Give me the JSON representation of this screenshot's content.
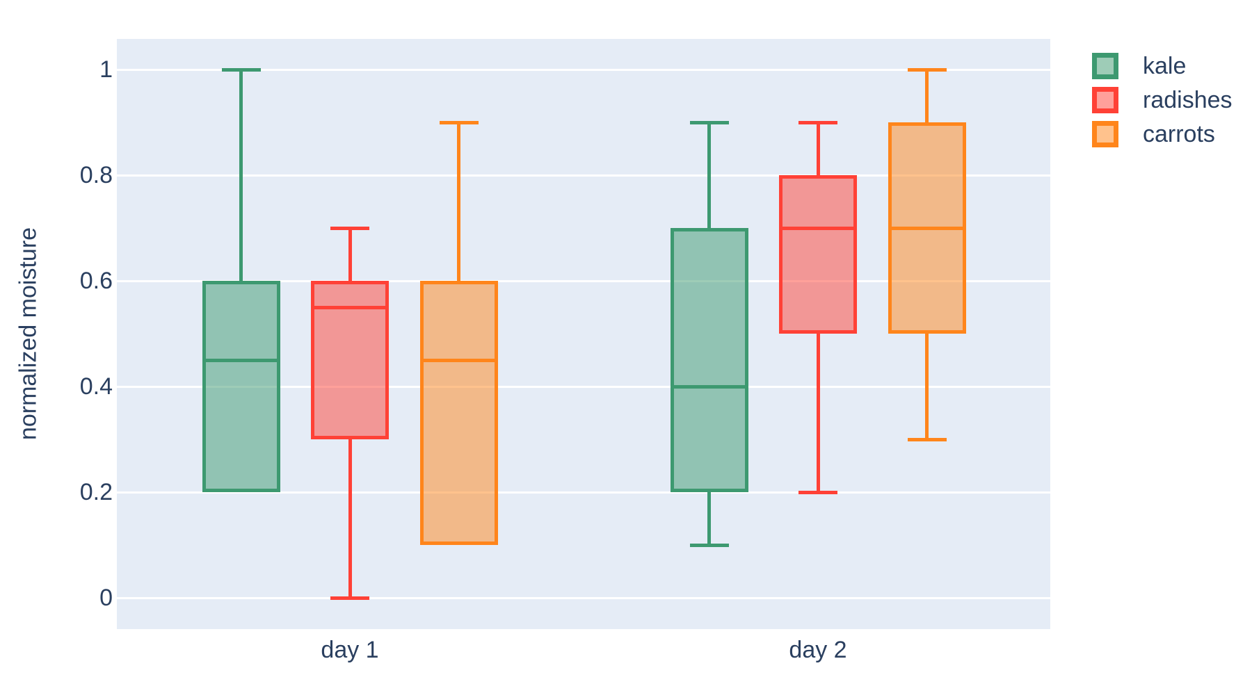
{
  "chart_data": {
    "type": "box",
    "boxmode": "group",
    "title": "",
    "xlabel": "",
    "ylabel": "normalized moisture",
    "categories": [
      "day 1",
      "day 2"
    ],
    "y_tick_labels": [
      "0",
      "0.2",
      "0.4",
      "0.6",
      "0.8",
      "1"
    ],
    "y_tick_values": [
      0,
      0.2,
      0.4,
      0.6,
      0.8,
      1
    ],
    "yaxis_range": [
      -0.06,
      1.06
    ],
    "grid": "on",
    "legend_position": "top-right-outside",
    "series": [
      {
        "name": "kale",
        "color": "#3D9970",
        "boxes": [
          {
            "group": "day 1",
            "whisker_low": 0.2,
            "q1": 0.2,
            "median": 0.45,
            "q3": 0.6,
            "whisker_high": 1.0
          },
          {
            "group": "day 2",
            "whisker_low": 0.1,
            "q1": 0.2,
            "median": 0.4,
            "q3": 0.7,
            "whisker_high": 0.9
          }
        ]
      },
      {
        "name": "radishes",
        "color": "#FF4136",
        "boxes": [
          {
            "group": "day 1",
            "whisker_low": 0.0,
            "q1": 0.3,
            "median": 0.55,
            "q3": 0.6,
            "whisker_high": 0.7
          },
          {
            "group": "day 2",
            "whisker_low": 0.2,
            "q1": 0.5,
            "median": 0.7,
            "q3": 0.8,
            "whisker_high": 0.9
          }
        ]
      },
      {
        "name": "carrots",
        "color": "#FF851B",
        "boxes": [
          {
            "group": "day 1",
            "whisker_low": 0.1,
            "q1": 0.1,
            "median": 0.45,
            "q3": 0.6,
            "whisker_high": 0.9
          },
          {
            "group": "day 2",
            "whisker_low": 0.3,
            "q1": 0.5,
            "median": 0.7,
            "q3": 0.9,
            "whisker_high": 1.0
          }
        ]
      }
    ],
    "colors": {
      "plot_bg": "#E5ECF6",
      "grid": "#FFFFFF",
      "font": "#2A3F5F",
      "paper": "#FFFFFF",
      "fill_opacity": 0.5
    }
  }
}
